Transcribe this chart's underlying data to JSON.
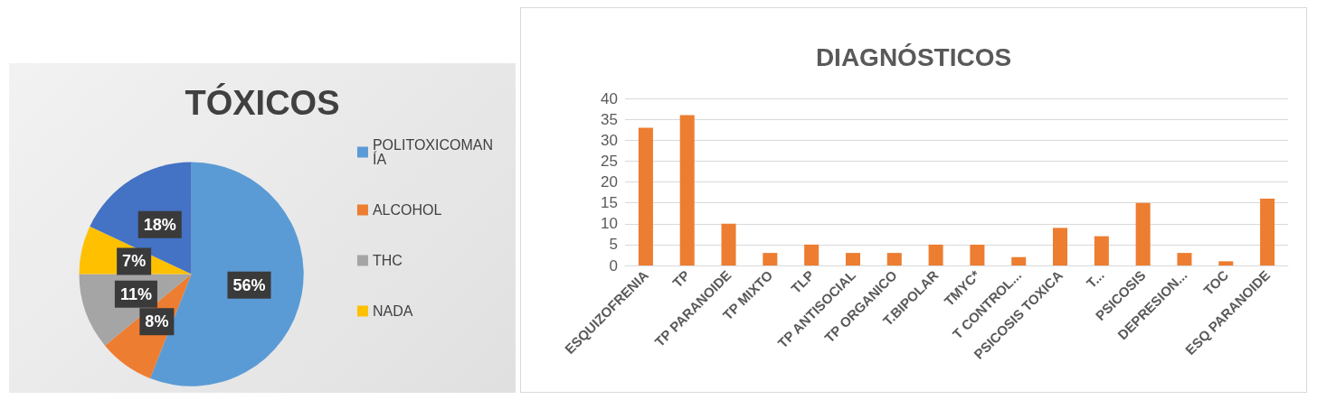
{
  "chart_data": [
    {
      "type": "pie",
      "title": "TÓXICOS",
      "categories": [
        "POLITOXICOMANÍA",
        "ALCOHOL",
        "THC",
        "NADA",
        null
      ],
      "values": [
        56,
        8,
        11,
        7,
        18
      ],
      "colors": [
        "#5b9bd5",
        "#ed7d31",
        "#a5a5a5",
        "#ffc000",
        "#4472c4"
      ],
      "value_labels": [
        "56%",
        "8%",
        "11%",
        "7%",
        "18%"
      ],
      "legend": "right"
    },
    {
      "type": "bar",
      "title": "DIAGNÓSTICOS",
      "categories": [
        "ESQUIZOFRENIA",
        "TP",
        "TP PARANOIDE",
        "TP MIXTO",
        "TLP",
        "TP ANTISOCIAL",
        "TP ORGANICO",
        "T.BIPOLAR",
        "TMYC*",
        "T CONTROL...",
        "PSICOSIS TOXICA",
        "T...",
        "PSICOSIS",
        "DEPRESION...",
        "TOC",
        "ESQ PARANOIDE"
      ],
      "values": [
        33,
        36,
        10,
        3,
        5,
        3,
        3,
        5,
        5,
        2,
        9,
        7,
        15,
        3,
        1,
        16
      ],
      "color": "#ed7d31",
      "ylim": [
        0,
        40
      ],
      "yticks": [
        0,
        5,
        10,
        15,
        20,
        25,
        30,
        35,
        40
      ],
      "grid": "y"
    }
  ]
}
